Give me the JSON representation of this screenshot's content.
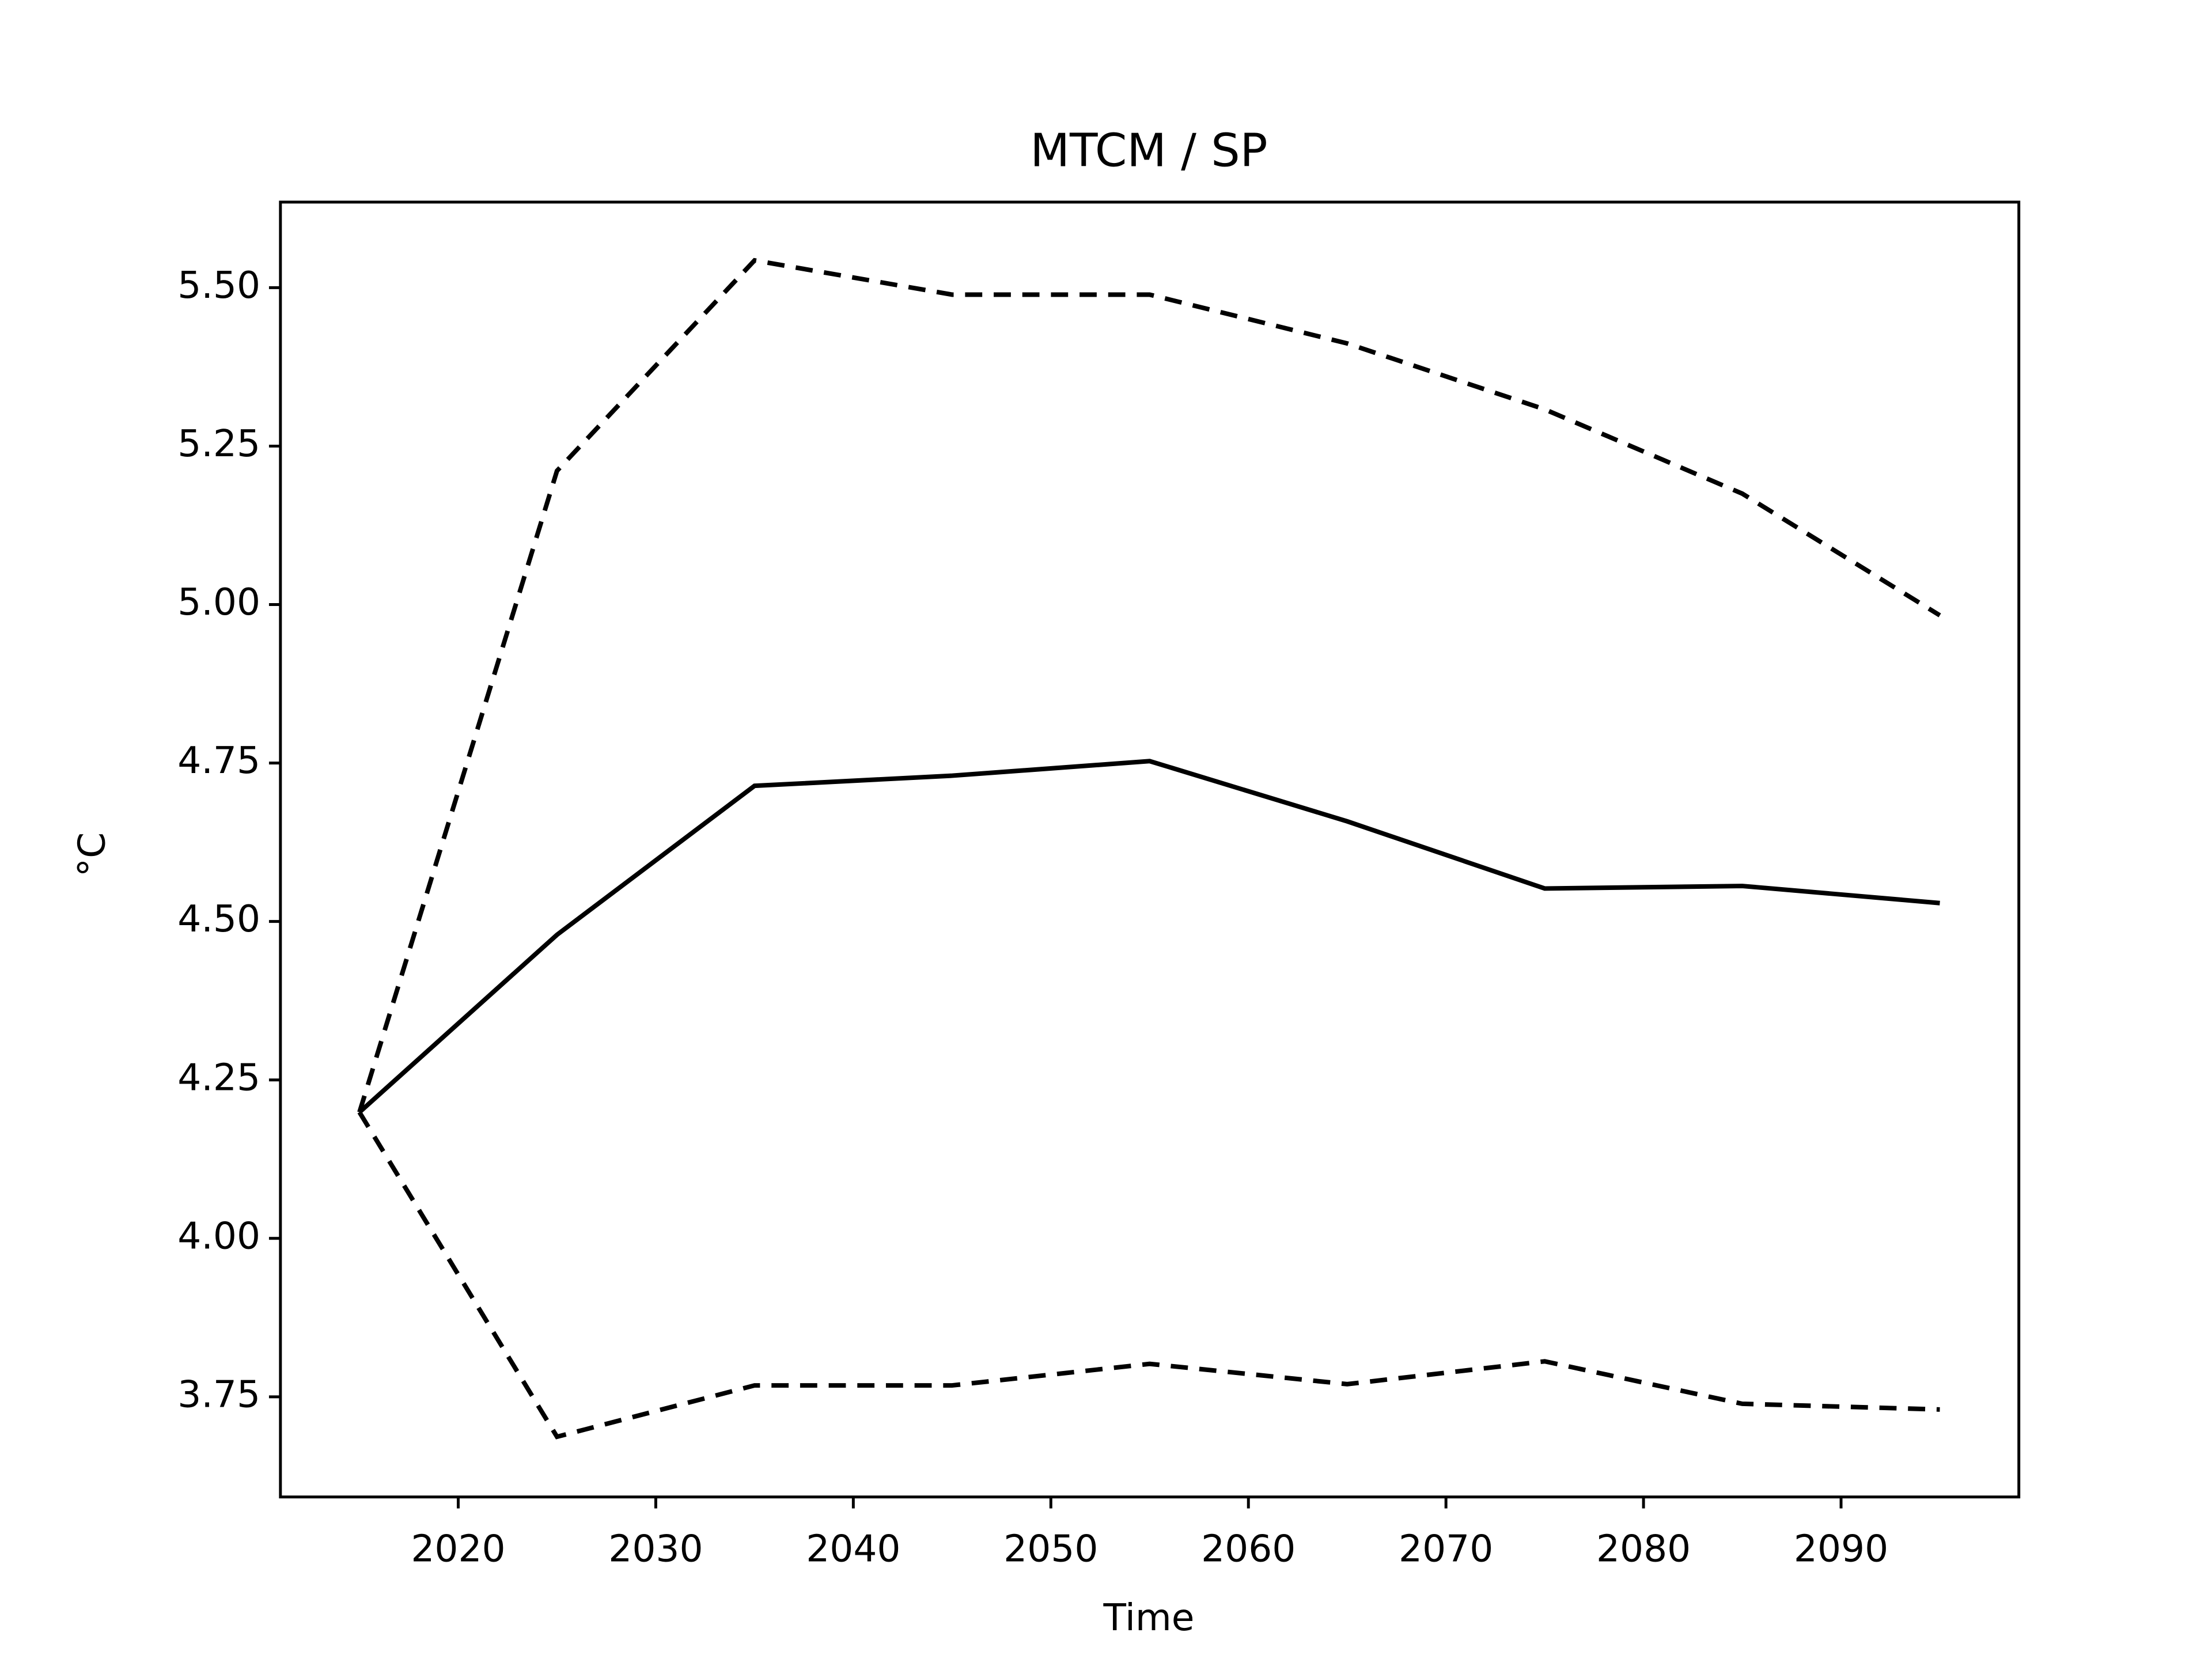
{
  "chart_data": {
    "type": "line",
    "title": "MTCM / SP",
    "xlabel": "Time",
    "ylabel": "°C",
    "x": [
      2015,
      2025,
      2035,
      2045,
      2055,
      2065,
      2075,
      2085,
      2095
    ],
    "series": [
      {
        "color": "#000000",
        "dashed": false,
        "values": [
          4.199,
          4.479,
          4.714,
          4.73,
          4.753,
          4.658,
          4.552,
          4.556,
          4.529
        ]
      },
      {
        "color": "#000000",
        "dashed": true,
        "values": [
          4.199,
          5.211,
          5.543,
          5.489,
          5.489,
          5.412,
          5.308,
          5.175,
          4.983
        ]
      },
      {
        "color": "#000000",
        "dashed": true,
        "values": [
          4.199,
          3.687,
          3.768,
          3.768,
          3.802,
          3.77,
          3.806,
          3.739,
          3.73
        ]
      }
    ],
    "xlim": [
      2011,
      2099
    ],
    "ylim": [
      3.592,
      5.635
    ],
    "xticks": [
      2020,
      2030,
      2040,
      2050,
      2060,
      2070,
      2080,
      2090
    ],
    "yticks": [
      {
        "value": 3.75,
        "label": "3.75"
      },
      {
        "value": 4.0,
        "label": "4.00"
      },
      {
        "value": 4.25,
        "label": "4.25"
      },
      {
        "value": 4.5,
        "label": "4.50"
      },
      {
        "value": 4.75,
        "label": "4.75"
      },
      {
        "value": 5.0,
        "label": "5.00"
      },
      {
        "value": 5.25,
        "label": "5.25"
      },
      {
        "value": 5.5,
        "label": "5.50"
      }
    ],
    "grid": false
  }
}
